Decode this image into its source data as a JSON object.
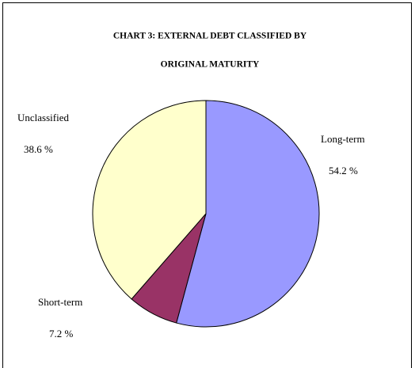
{
  "chart_data": {
    "type": "pie",
    "title": [
      "CHART 3: EXTERNAL DEBT CLASSIFIED BY",
      "ORIGINAL MATURITY"
    ],
    "categories": [
      "Long-term",
      "Short-term",
      "Unclassified"
    ],
    "values": [
      54.2,
      7.2,
      38.6
    ],
    "value_labels": [
      "54.2 %",
      "7.2 %",
      "38.6 %"
    ],
    "colors": [
      "#9999ff",
      "#993366",
      "#ffffcc"
    ]
  }
}
